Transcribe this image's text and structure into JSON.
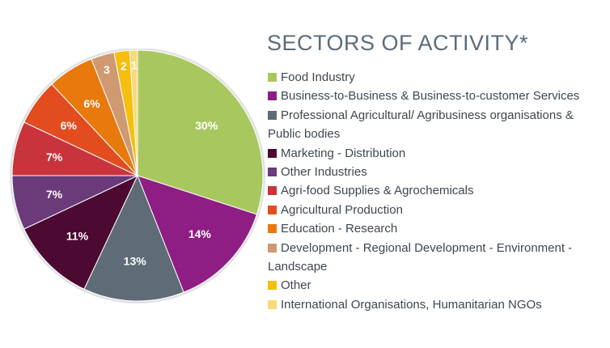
{
  "chart_data": {
    "type": "pie",
    "title": "SECTORS OF ACTIVITY*",
    "slices": [
      {
        "label": "Food Industry",
        "value": 30,
        "display": "30%",
        "color": "#a8c85f"
      },
      {
        "label": "Business-to-Business & Business-to-customer Services",
        "value": 14,
        "display": "14%",
        "color": "#8e1e83"
      },
      {
        "label": "Professional Agricultural/ Agribusiness organisations & Public bodies",
        "value": 13,
        "display": "13%",
        "color": "#5f6b76"
      },
      {
        "label": "Marketing - Distribution",
        "value": 11,
        "display": "11%",
        "color": "#4c0a33"
      },
      {
        "label": "Other Industries",
        "value": 7,
        "display": "7%",
        "color": "#6b3a7a"
      },
      {
        "label": "Agri-food Supplies & Agrochemicals",
        "value": 7,
        "display": "7%",
        "color": "#c9343c"
      },
      {
        "label": "Agricultural Production",
        "value": 6,
        "display": "6%",
        "color": "#e24c1e"
      },
      {
        "label": "Education - Research",
        "value": 6,
        "display": "6%",
        "color": "#e8790d"
      },
      {
        "label": "Development - Regional Development - Environment - Landscape",
        "value": 3,
        "display": "3",
        "color": "#cf9a72"
      },
      {
        "label": "Other",
        "value": 2,
        "display": "2",
        "color": "#f6be0e"
      },
      {
        "label": "International Organisations, Humanitarian NGOs",
        "value": 1,
        "display": "1",
        "color": "#f9d97a"
      }
    ]
  }
}
